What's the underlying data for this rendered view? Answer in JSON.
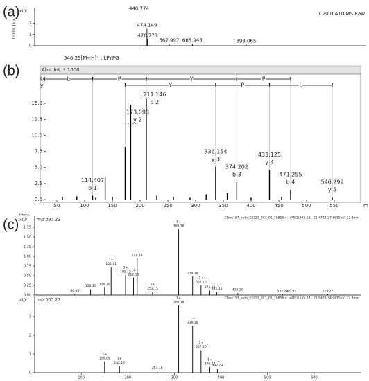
{
  "chart_data": [
    {
      "type": "spectrum",
      "panel_label": "(a)",
      "ylabel": "Intens. [a.u.]",
      "scale_label": "x10⁵",
      "header": "C20 0:A10 MS Raw",
      "x": [
        440.774,
        474.149,
        476.773,
        567.997,
        665.945,
        893.065
      ],
      "values": [
        3.0,
        1.5,
        0.6,
        0.15,
        0.15,
        0.1
      ],
      "x_labels": [
        "440.774",
        "474.149",
        "476.773",
        "567.997",
        "665.945",
        "893.065"
      ],
      "xlim": [
        0,
        1400
      ],
      "ylim": [
        0,
        3.2
      ],
      "yticks": [
        0,
        1,
        2
      ],
      "color": "#000000",
      "label_color": "#222222"
    },
    {
      "type": "spectrum",
      "panel_label": "(b)",
      "subtitle": "546.29[M+H]⁺ : LPYPG",
      "ylabel": "Abs. Int. * 1000",
      "xlabel": "m",
      "x": [
        60,
        86,
        114.407,
        120,
        137,
        150,
        173.098,
        183,
        211.146,
        230,
        260,
        290,
        319,
        336.154,
        357,
        374.202,
        400,
        433.125,
        455,
        471.255,
        546.299
      ],
      "values": [
        0.4,
        0.5,
        0.6,
        0.3,
        3.5,
        0.4,
        8.2,
        14.8,
        15.7,
        0.6,
        0.4,
        0.3,
        0.8,
        5.1,
        1.0,
        2.7,
        0.3,
        4.6,
        0.4,
        1.5,
        0.3
      ],
      "x_labels": [
        null,
        null,
        "114.407",
        null,
        null,
        null,
        "173.098",
        null,
        "211.146",
        null,
        null,
        null,
        null,
        "336.154",
        null,
        "374.202",
        null,
        "433.125",
        null,
        "471.255",
        "546.299"
      ],
      "ions": [
        null,
        null,
        "b 1",
        null,
        null,
        null,
        "y 2",
        null,
        "b 2",
        null,
        null,
        null,
        null,
        "y 3",
        null,
        "b 3",
        null,
        "y 4",
        null,
        "b 4",
        "y 5"
      ],
      "ladder": {
        "b": {
          "label": "b",
          "residues": [
            "L",
            "P",
            "Y",
            "P"
          ]
        },
        "y": {
          "label": "y",
          "residues": [
            "Y",
            "P",
            "L"
          ]
        }
      },
      "xlim": [
        30,
        590
      ],
      "ylim": [
        0,
        17.5
      ],
      "xticks": [
        50,
        100,
        150,
        200,
        250,
        300,
        350,
        400,
        450,
        500,
        550
      ],
      "yticks": [
        {
          "value": 0,
          "label": "0.0"
        },
        {
          "value": 2.5,
          "label": "2.5"
        },
        {
          "value": 5,
          "label": "5.0"
        },
        {
          "value": 7.5,
          "label": "7.5"
        },
        {
          "value": 10,
          "label": "10.0"
        },
        {
          "value": 12.5,
          "label": "12.5"
        },
        {
          "value": 15,
          "label": "15.0"
        }
      ],
      "color": "#000000",
      "b_color": "#e3231b",
      "y_color": "#2a2ad0"
    },
    {
      "type": "spectrum",
      "panel_label": "(c)",
      "title": "m/z:393.22",
      "ylabel": "Intens.",
      "scale_label": "x10⁶",
      "header": "21me157_auto_S2223_0C2_01_10856.d: +MS2(393.13), 21.4473-27.8615eV, 12.3min",
      "x": [
        86.09,
        120.11,
        150.1,
        164.11,
        195.12,
        212.13,
        220.14,
        253.15,
        309.18,
        339.18,
        357.2,
        376.22,
        391.16,
        436.2,
        532.29,
        549.95,
        629.27
      ],
      "values": [
        0.03,
        0.15,
        0.2,
        0.72,
        0.52,
        0.45,
        0.95,
        0.08,
        1.7,
        0.48,
        0.25,
        0.12,
        0.08,
        0.05,
        0.02,
        0.02,
        0.02
      ],
      "x_labels": [
        "86.09",
        "120.11",
        "150.10",
        "164.11",
        "195.12",
        "212.13",
        "220.14",
        "253.15",
        "309.18",
        "339.18",
        "357.20",
        "376.22",
        "391.16",
        "436.20",
        "532.29",
        "549.95",
        "629.27"
      ],
      "charges": [
        null,
        null,
        null,
        "1+",
        "1+",
        "1+",
        null,
        "1+",
        "1+",
        null,
        "1+",
        null,
        null,
        null,
        null,
        null,
        null
      ],
      "xlim": [
        0,
        700
      ],
      "ylim": [
        0,
        2.0
      ],
      "yticks": [
        {
          "value": 0,
          "label": "0.00"
        },
        {
          "value": 0.25,
          "label": "0.25"
        },
        {
          "value": 0.5,
          "label": "0.50"
        },
        {
          "value": 0.75,
          "label": "0.75"
        },
        {
          "value": 1,
          "label": "1.00"
        },
        {
          "value": 1.25,
          "label": "1.25"
        },
        {
          "value": 1.5,
          "label": "1.50"
        },
        {
          "value": 1.75,
          "label": "1.75"
        }
      ],
      "color": "#000000",
      "label_color": "#222222"
    },
    {
      "type": "spectrum",
      "title": "m/z:555.27",
      "scale_label": "x10⁵",
      "header": "21me157_auto_S2223_0C2_01_10856.d: +MS2(555.27), 21.9433-34.9615eV, 12.3min",
      "x": [
        150.09,
        182.12,
        263.16,
        309.18,
        339.18,
        357.2,
        376.17,
        392.19
      ],
      "values": [
        0.6,
        0.35,
        0.1,
        3.6,
        2.5,
        1.2,
        0.3,
        0.2
      ],
      "x_labels": [
        "150.09",
        "182.12",
        "263.16",
        "309.18",
        "339.18",
        "357.20",
        "376.17",
        "392.19"
      ],
      "charges": [
        "1+",
        "1+",
        null,
        "1+",
        "1+",
        "1+",
        "1+",
        "1+"
      ],
      "xlim": [
        0,
        700
      ],
      "ylim": [
        0,
        4
      ],
      "yticks": [
        0,
        1,
        2,
        3
      ],
      "xticks": [
        100,
        200,
        300,
        400,
        500,
        600
      ],
      "color": "#000000",
      "label_color": "#222222"
    }
  ]
}
